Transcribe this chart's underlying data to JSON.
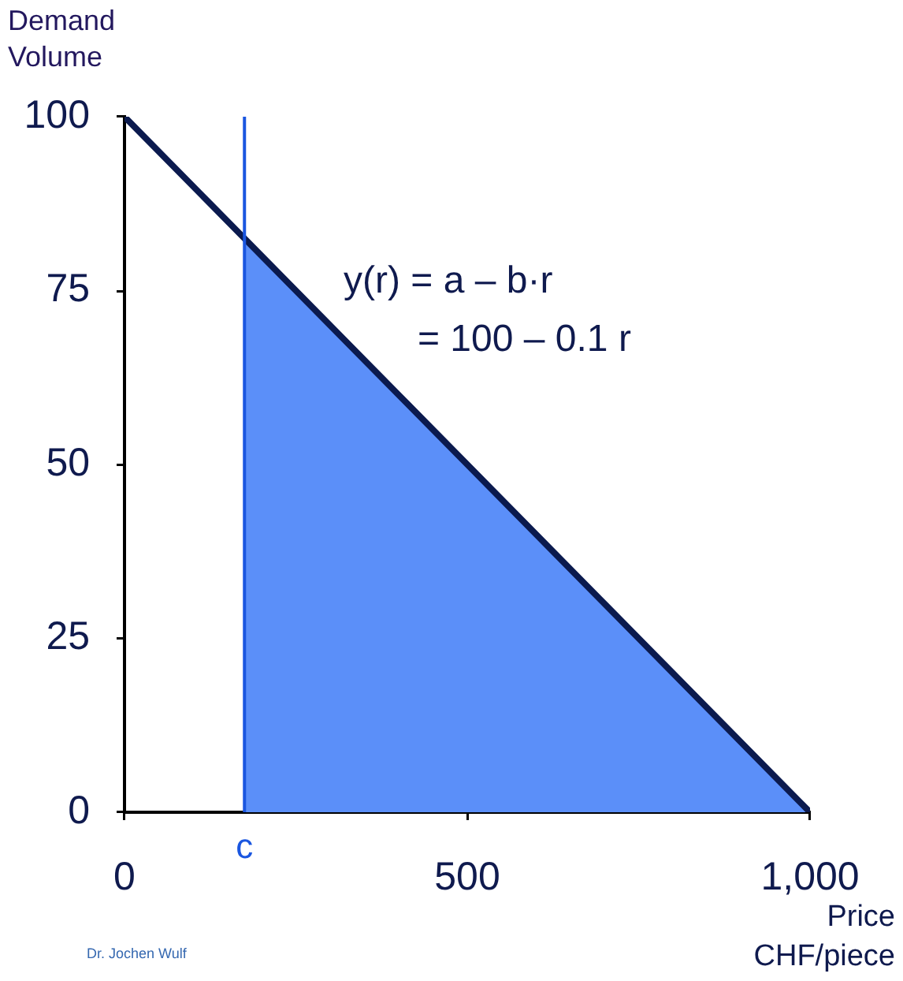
{
  "chart_data": {
    "type": "line",
    "xlabel": "Price\nCHF/piece",
    "ylabel": "Demand\nVolume",
    "annotations": [
      "y(r) = a – b·r",
      "= 100 – 0.1 r",
      "Dr. Jochen Wulf"
    ],
    "x": [
      0,
      1000
    ],
    "series": [
      {
        "type": "line",
        "color": "#0b1a4e",
        "values": [
          100,
          0
        ]
      },
      {
        "type": "area",
        "x": [
          175,
          1000
        ],
        "color": "#5b8ff9",
        "values": [
          82.5,
          0
        ]
      }
    ],
    "xlim": [
      0,
      1000
    ],
    "ylim": [
      0,
      100
    ],
    "xticks": [
      0,
      500,
      {
        "value": 1000,
        "label": "1,000"
      }
    ],
    "yticks": [
      0,
      25,
      50,
      75,
      100
    ],
    "ref_lines": [
      {
        "axis": "x",
        "value": 175,
        "label": "c",
        "color": "#1a56e0"
      }
    ],
    "grid": false,
    "legend": false,
    "marker": "none",
    "line_style": "solid"
  }
}
